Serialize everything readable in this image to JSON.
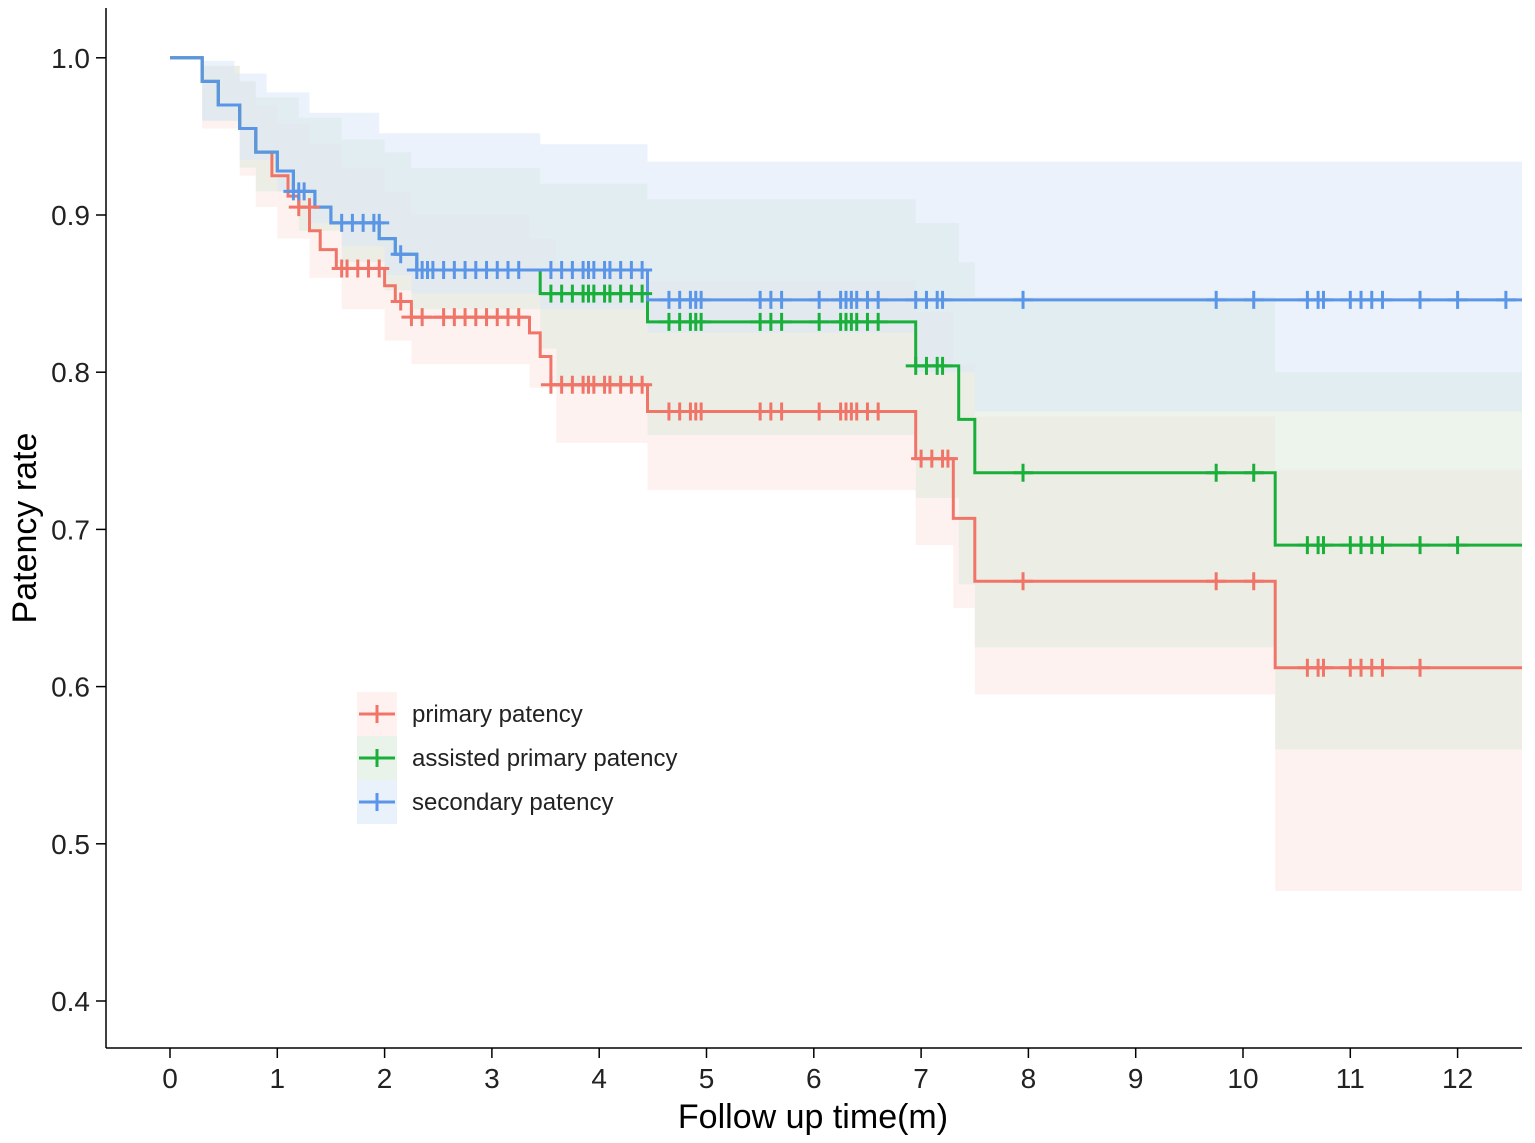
{
  "chart_data": {
    "type": "line",
    "subtype": "kaplan-meier",
    "title": "",
    "xlabel": "Follow up time(m)",
    "ylabel": "Patency rate",
    "xlim": [
      -0.6,
      12.6
    ],
    "ylim": [
      0.37,
      1.03
    ],
    "xticks": [
      0,
      1,
      2,
      3,
      4,
      5,
      6,
      7,
      8,
      9,
      10,
      11,
      12
    ],
    "xtick_labels": [
      "0",
      "1",
      "2",
      "3",
      "4",
      "5",
      "6",
      "7",
      "8",
      "9",
      "10",
      "11",
      "12"
    ],
    "yticks": [
      0.4,
      0.5,
      0.6,
      0.7,
      0.8,
      0.9,
      1.0
    ],
    "ytick_labels": [
      "0.4",
      "0.5",
      "0.6",
      "0.7",
      "0.8",
      "0.9",
      "1.0"
    ],
    "grid": false,
    "legend_position": "left-middle",
    "series": [
      {
        "name": "primary patency",
        "color": "#F07568",
        "band_color": "#FDE8E6",
        "steps": [
          [
            0,
            1.0
          ],
          [
            0.3,
            0.985
          ],
          [
            0.45,
            0.97
          ],
          [
            0.65,
            0.955
          ],
          [
            0.8,
            0.94
          ],
          [
            0.95,
            0.925
          ],
          [
            1.1,
            0.912
          ],
          [
            1.2,
            0.905
          ],
          [
            1.3,
            0.89
          ],
          [
            1.4,
            0.878
          ],
          [
            1.55,
            0.866
          ],
          [
            2.0,
            0.855
          ],
          [
            2.1,
            0.845
          ],
          [
            2.25,
            0.835
          ],
          [
            3.35,
            0.825
          ],
          [
            3.45,
            0.81
          ],
          [
            3.55,
            0.792
          ],
          [
            4.45,
            0.775
          ],
          [
            6.95,
            0.745
          ],
          [
            7.3,
            0.707
          ],
          [
            7.5,
            0.667
          ],
          [
            10.3,
            0.612
          ],
          [
            12.6,
            0.612
          ]
        ],
        "upper": [
          [
            0,
            1.0
          ],
          [
            0.3,
            0.995
          ],
          [
            0.65,
            0.985
          ],
          [
            0.8,
            0.97
          ],
          [
            1.0,
            0.958
          ],
          [
            1.3,
            0.945
          ],
          [
            1.6,
            0.93
          ],
          [
            2.0,
            0.915
          ],
          [
            2.25,
            0.9
          ],
          [
            3.35,
            0.885
          ],
          [
            3.6,
            0.87
          ],
          [
            4.45,
            0.858
          ],
          [
            6.95,
            0.838
          ],
          [
            7.3,
            0.805
          ],
          [
            7.5,
            0.772
          ],
          [
            10.3,
            0.738
          ],
          [
            12.6,
            0.738
          ]
        ],
        "lower": [
          [
            0,
            1.0
          ],
          [
            0.3,
            0.955
          ],
          [
            0.65,
            0.925
          ],
          [
            0.8,
            0.905
          ],
          [
            1.0,
            0.885
          ],
          [
            1.3,
            0.86
          ],
          [
            1.6,
            0.84
          ],
          [
            2.0,
            0.82
          ],
          [
            2.25,
            0.805
          ],
          [
            3.35,
            0.79
          ],
          [
            3.6,
            0.755
          ],
          [
            4.45,
            0.725
          ],
          [
            6.95,
            0.69
          ],
          [
            7.3,
            0.65
          ],
          [
            7.5,
            0.595
          ],
          [
            10.3,
            0.47
          ],
          [
            12.6,
            0.47
          ]
        ],
        "censor_x": [
          1.2,
          1.3,
          1.6,
          1.65,
          1.75,
          1.85,
          1.95,
          2.15,
          2.25,
          2.35,
          2.55,
          2.65,
          2.75,
          2.85,
          2.95,
          3.05,
          3.15,
          3.25,
          3.55,
          3.65,
          3.75,
          3.85,
          3.9,
          3.95,
          4.05,
          4.1,
          4.2,
          4.3,
          4.4,
          4.65,
          4.75,
          4.85,
          4.9,
          4.95,
          5.5,
          5.6,
          5.7,
          6.05,
          6.25,
          6.3,
          6.35,
          6.4,
          6.5,
          6.6,
          7.0,
          7.1,
          7.2,
          7.25,
          7.95,
          9.75,
          10.1,
          10.6,
          10.7,
          10.75,
          11.0,
          11.1,
          11.2,
          11.3,
          11.65
        ],
        "censor_y": [
          0.905,
          0.905,
          0.866,
          0.866,
          0.866,
          0.866,
          0.866,
          0.845,
          0.835,
          0.835,
          0.835,
          0.835,
          0.835,
          0.835,
          0.835,
          0.835,
          0.835,
          0.835,
          0.792,
          0.792,
          0.792,
          0.792,
          0.792,
          0.792,
          0.792,
          0.792,
          0.792,
          0.792,
          0.792,
          0.775,
          0.775,
          0.775,
          0.775,
          0.775,
          0.775,
          0.775,
          0.775,
          0.775,
          0.775,
          0.775,
          0.775,
          0.775,
          0.775,
          0.775,
          0.745,
          0.745,
          0.745,
          0.745,
          0.667,
          0.667,
          0.667,
          0.612,
          0.612,
          0.612,
          0.612,
          0.612,
          0.612,
          0.612,
          0.612
        ]
      },
      {
        "name": "assisted primary patency",
        "color": "#1AAF3A",
        "band_color": "#DCEBDA",
        "steps": [
          [
            0,
            1.0
          ],
          [
            0.3,
            0.985
          ],
          [
            0.45,
            0.97
          ],
          [
            0.65,
            0.955
          ],
          [
            0.8,
            0.94
          ],
          [
            1.0,
            0.928
          ],
          [
            1.15,
            0.915
          ],
          [
            1.35,
            0.905
          ],
          [
            1.5,
            0.895
          ],
          [
            1.95,
            0.885
          ],
          [
            2.1,
            0.875
          ],
          [
            2.3,
            0.865
          ],
          [
            3.45,
            0.85
          ],
          [
            4.45,
            0.832
          ],
          [
            6.95,
            0.804
          ],
          [
            7.35,
            0.77
          ],
          [
            7.5,
            0.736
          ],
          [
            10.3,
            0.69
          ],
          [
            12.6,
            0.69
          ]
        ],
        "upper": [
          [
            0,
            1.0
          ],
          [
            0.3,
            0.995
          ],
          [
            0.65,
            0.985
          ],
          [
            0.8,
            0.975
          ],
          [
            1.2,
            0.962
          ],
          [
            1.6,
            0.948
          ],
          [
            2.0,
            0.94
          ],
          [
            2.25,
            0.93
          ],
          [
            3.45,
            0.92
          ],
          [
            4.45,
            0.91
          ],
          [
            6.95,
            0.895
          ],
          [
            7.35,
            0.87
          ],
          [
            7.5,
            0.848
          ],
          [
            10.3,
            0.8
          ],
          [
            12.6,
            0.8
          ]
        ],
        "lower": [
          [
            0,
            1.0
          ],
          [
            0.3,
            0.96
          ],
          [
            0.65,
            0.93
          ],
          [
            0.8,
            0.915
          ],
          [
            1.2,
            0.89
          ],
          [
            1.6,
            0.87
          ],
          [
            2.0,
            0.852
          ],
          [
            2.25,
            0.84
          ],
          [
            3.45,
            0.815
          ],
          [
            3.6,
            0.79
          ],
          [
            4.45,
            0.76
          ],
          [
            6.95,
            0.72
          ],
          [
            7.35,
            0.665
          ],
          [
            7.5,
            0.625
          ],
          [
            10.3,
            0.56
          ],
          [
            12.6,
            0.56
          ]
        ],
        "censor_x": [
          3.55,
          3.65,
          3.75,
          3.85,
          3.9,
          3.95,
          4.05,
          4.1,
          4.2,
          4.3,
          4.4,
          4.65,
          4.75,
          4.85,
          4.9,
          4.95,
          5.5,
          5.6,
          5.7,
          6.05,
          6.25,
          6.3,
          6.35,
          6.4,
          6.5,
          6.6,
          6.95,
          7.05,
          7.15,
          7.2,
          7.95,
          9.75,
          10.1,
          10.6,
          10.7,
          10.75,
          11.0,
          11.1,
          11.2,
          11.3,
          11.65,
          12.0
        ],
        "censor_y": [
          0.85,
          0.85,
          0.85,
          0.85,
          0.85,
          0.85,
          0.85,
          0.85,
          0.85,
          0.85,
          0.85,
          0.832,
          0.832,
          0.832,
          0.832,
          0.832,
          0.832,
          0.832,
          0.832,
          0.832,
          0.832,
          0.832,
          0.832,
          0.832,
          0.832,
          0.832,
          0.804,
          0.804,
          0.804,
          0.804,
          0.736,
          0.736,
          0.736,
          0.69,
          0.69,
          0.69,
          0.69,
          0.69,
          0.69,
          0.69,
          0.69,
          0.69
        ]
      },
      {
        "name": "secondary patency",
        "color": "#5A95E8",
        "band_color": "#DBE8F7",
        "steps": [
          [
            0,
            1.0
          ],
          [
            0.3,
            0.985
          ],
          [
            0.45,
            0.97
          ],
          [
            0.65,
            0.955
          ],
          [
            0.8,
            0.94
          ],
          [
            1.0,
            0.928
          ],
          [
            1.15,
            0.915
          ],
          [
            1.35,
            0.905
          ],
          [
            1.5,
            0.895
          ],
          [
            1.95,
            0.885
          ],
          [
            2.1,
            0.875
          ],
          [
            2.3,
            0.865
          ],
          [
            4.45,
            0.846
          ],
          [
            12.6,
            0.846
          ]
        ],
        "upper": [
          [
            0,
            1.0
          ],
          [
            0.3,
            0.998
          ],
          [
            0.6,
            0.99
          ],
          [
            0.9,
            0.978
          ],
          [
            1.3,
            0.965
          ],
          [
            1.95,
            0.952
          ],
          [
            3.45,
            0.945
          ],
          [
            4.45,
            0.934
          ],
          [
            6.95,
            0.934
          ],
          [
            7.5,
            0.934
          ],
          [
            12.6,
            0.934
          ]
        ],
        "lower": [
          [
            0,
            1.0
          ],
          [
            0.3,
            0.96
          ],
          [
            0.65,
            0.935
          ],
          [
            1.0,
            0.915
          ],
          [
            1.3,
            0.895
          ],
          [
            1.6,
            0.88
          ],
          [
            2.0,
            0.862
          ],
          [
            2.25,
            0.85
          ],
          [
            3.45,
            0.84
          ],
          [
            4.45,
            0.825
          ],
          [
            6.95,
            0.8
          ],
          [
            7.5,
            0.775
          ],
          [
            12.6,
            0.775
          ]
        ],
        "censor_x": [
          1.15,
          1.2,
          1.25,
          1.6,
          1.7,
          1.8,
          1.9,
          1.95,
          2.15,
          2.3,
          2.35,
          2.4,
          2.45,
          2.55,
          2.65,
          2.75,
          2.85,
          2.95,
          3.05,
          3.15,
          3.25,
          3.55,
          3.65,
          3.75,
          3.85,
          3.9,
          3.95,
          4.05,
          4.1,
          4.2,
          4.3,
          4.4,
          4.65,
          4.75,
          4.85,
          4.9,
          4.95,
          5.5,
          5.6,
          5.7,
          6.05,
          6.25,
          6.3,
          6.35,
          6.4,
          6.5,
          6.6,
          6.95,
          7.05,
          7.15,
          7.2,
          7.95,
          9.75,
          10.1,
          10.6,
          10.7,
          10.75,
          11.0,
          11.1,
          11.2,
          11.3,
          11.65,
          12.0,
          12.45
        ],
        "censor_y": [
          0.915,
          0.915,
          0.915,
          0.895,
          0.895,
          0.895,
          0.895,
          0.895,
          0.875,
          0.865,
          0.865,
          0.865,
          0.865,
          0.865,
          0.865,
          0.865,
          0.865,
          0.865,
          0.865,
          0.865,
          0.865,
          0.865,
          0.865,
          0.865,
          0.865,
          0.865,
          0.865,
          0.865,
          0.865,
          0.865,
          0.865,
          0.865,
          0.846,
          0.846,
          0.846,
          0.846,
          0.846,
          0.846,
          0.846,
          0.846,
          0.846,
          0.846,
          0.846,
          0.846,
          0.846,
          0.846,
          0.846,
          0.846,
          0.846,
          0.846,
          0.846,
          0.846,
          0.846,
          0.846,
          0.846,
          0.846,
          0.846,
          0.846,
          0.846,
          0.846,
          0.846,
          0.846,
          0.846,
          0.846
        ]
      }
    ]
  }
}
